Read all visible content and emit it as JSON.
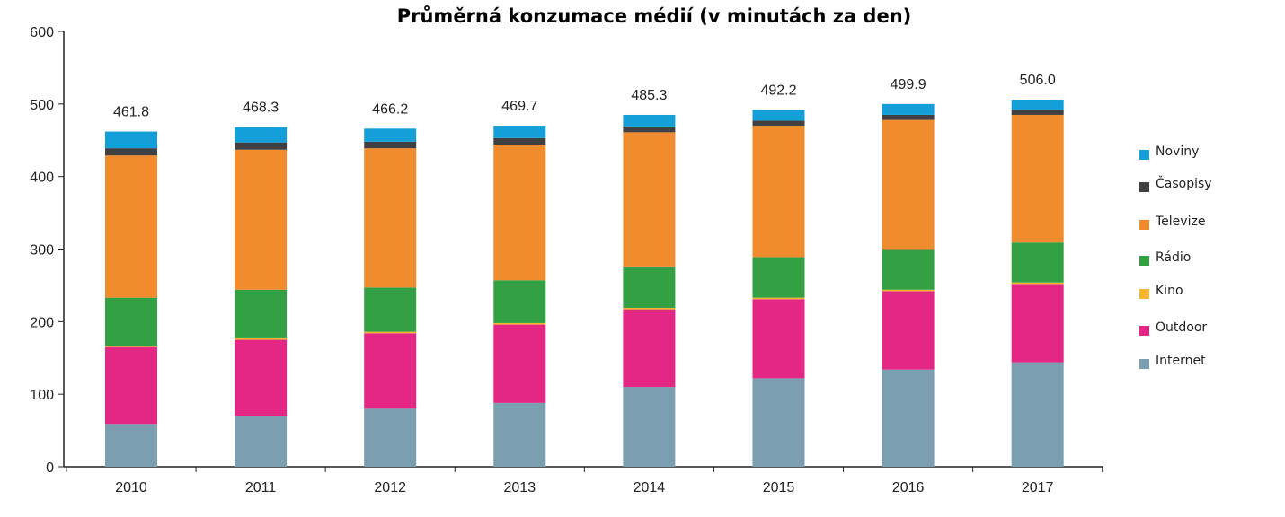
{
  "chart_data": {
    "type": "bar",
    "stacked": true,
    "title": "Průměrná konzumace médií (v minutách za den)",
    "xlabel": "",
    "ylabel": "",
    "ylim": [
      0,
      600
    ],
    "yticks": [
      0,
      100,
      200,
      300,
      400,
      500,
      600
    ],
    "categories": [
      "2010",
      "2011",
      "2012",
      "2013",
      "2014",
      "2015",
      "2016",
      "2017"
    ],
    "totals": [
      "461.8",
      "468.3",
      "466.2",
      "469.7",
      "485.3",
      "492.2",
      "499.9",
      "506.0"
    ],
    "grid": false,
    "legend_position": "right",
    "series": [
      {
        "name": "Internet",
        "color": "#7b9eb0",
        "values": [
          59,
          70,
          80,
          88,
          110,
          122,
          134,
          144
        ]
      },
      {
        "name": "Outdoor",
        "color": "#e42685",
        "values": [
          106,
          105,
          104,
          108,
          107,
          109,
          108,
          108
        ]
      },
      {
        "name": "Kino",
        "color": "#f5b531",
        "values": [
          2,
          2,
          2,
          2,
          2,
          2,
          2,
          2
        ]
      },
      {
        "name": "Rádio",
        "color": "#33a043",
        "values": [
          66,
          67,
          61,
          59,
          57,
          56,
          56,
          55
        ]
      },
      {
        "name": "Televize",
        "color": "#f08c2e",
        "values": [
          196,
          193,
          192,
          187,
          185,
          181,
          178,
          176
        ]
      },
      {
        "name": "Časopisy",
        "color": "#404040",
        "values": [
          10,
          10,
          9,
          9,
          8,
          7,
          7,
          7
        ]
      },
      {
        "name": "Noviny",
        "color": "#159fd9",
        "values": [
          23,
          21,
          18,
          17,
          16,
          15,
          15,
          14
        ]
      }
    ],
    "legend_order": [
      "Noviny",
      "Časopisy",
      "Televize",
      "Rádio",
      "Kino",
      "Outdoor",
      "Internet"
    ]
  }
}
